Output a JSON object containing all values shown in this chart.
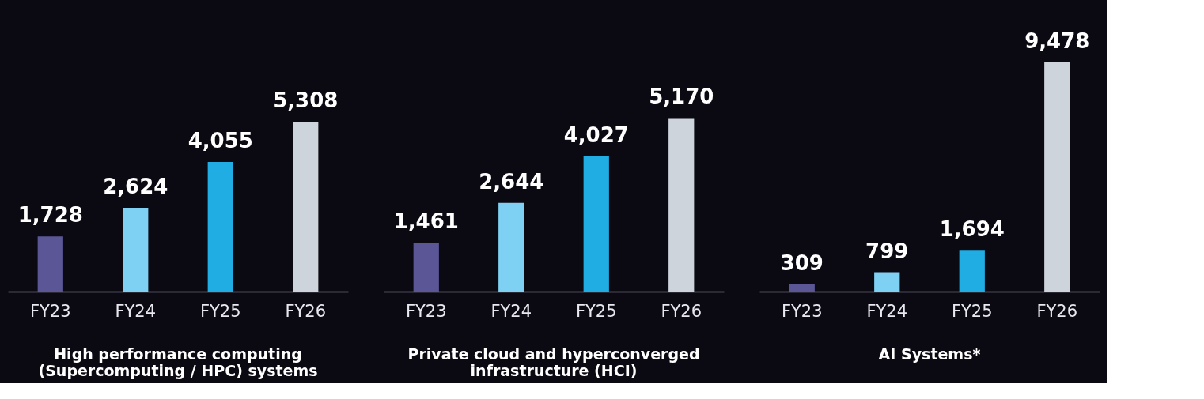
{
  "chart_data": [
    {
      "type": "bar",
      "title": "High performance computing\n(Supercomputing / HPC) systems",
      "categories": [
        "FY23",
        "FY24",
        "FY25",
        "FY26"
      ],
      "values": [
        1728,
        2624,
        4055,
        5308
      ],
      "colors": [
        "#5b5797",
        "#7fd1f3",
        "#20ade4",
        "#cdd4db"
      ],
      "value_labels": [
        "1,728",
        "2,624",
        "4,055",
        "5,308"
      ]
    },
    {
      "type": "bar",
      "title": "Private cloud and hyperconverged\ninfrastructure (HCI)",
      "categories": [
        "FY23",
        "FY24",
        "FY25",
        "FY26"
      ],
      "values": [
        1461,
        2644,
        4027,
        5170
      ],
      "colors": [
        "#5b5797",
        "#7fd1f3",
        "#20ade4",
        "#cdd4db"
      ],
      "value_labels": [
        "1,461",
        "2,644",
        "4,027",
        "5,170"
      ]
    },
    {
      "type": "bar",
      "title": "AI Systems*",
      "categories": [
        "FY23",
        "FY24",
        "FY25",
        "FY26"
      ],
      "values": [
        309,
        799,
        1694,
        9478
      ],
      "colors": [
        "#5b5797",
        "#7fd1f3",
        "#20ade4",
        "#cdd4db"
      ],
      "value_labels": [
        "309",
        "799",
        "1,694",
        "9,478"
      ]
    }
  ]
}
